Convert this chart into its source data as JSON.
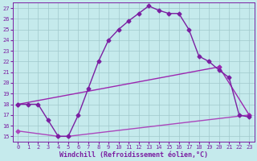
{
  "xlabel": "Windchill (Refroidissement éolien,°C)",
  "xlim": [
    -0.5,
    23.5
  ],
  "ylim": [
    14.5,
    27.5
  ],
  "yticks": [
    15,
    16,
    17,
    18,
    19,
    20,
    21,
    22,
    23,
    24,
    25,
    26,
    27
  ],
  "xticks": [
    0,
    1,
    2,
    3,
    4,
    5,
    6,
    7,
    8,
    9,
    10,
    11,
    12,
    13,
    14,
    15,
    16,
    17,
    18,
    19,
    20,
    21,
    22,
    23
  ],
  "bg_color": "#c5eaec",
  "grid_color": "#a0c8cc",
  "line_color1": "#7b1fa2",
  "line_color2": "#9c27b0",
  "line_color3": "#ab47bc",
  "curve1_x": [
    0,
    1,
    2,
    3,
    4,
    5,
    6,
    7,
    8,
    9,
    10,
    11,
    12,
    13,
    14,
    15,
    16,
    17,
    18,
    19,
    20,
    21,
    22,
    23
  ],
  "curve1_y": [
    18.0,
    18.0,
    18.0,
    16.5,
    15.0,
    15.0,
    17.0,
    19.5,
    22.0,
    24.0,
    25.0,
    25.8,
    26.5,
    27.2,
    26.8,
    26.5,
    26.5,
    25.0,
    22.5,
    22.0,
    21.2,
    20.5,
    17.0,
    16.8
  ],
  "curve2_x": [
    0,
    20,
    23
  ],
  "curve2_y": [
    18.0,
    21.5,
    17.0
  ],
  "curve3_x": [
    0,
    4,
    5,
    23
  ],
  "curve3_y": [
    15.5,
    15.0,
    15.0,
    17.0
  ],
  "marker": "D",
  "markersize": 2.5,
  "linewidth": 1.0,
  "axis_fontsize": 6.0,
  "tick_fontsize": 5.0
}
